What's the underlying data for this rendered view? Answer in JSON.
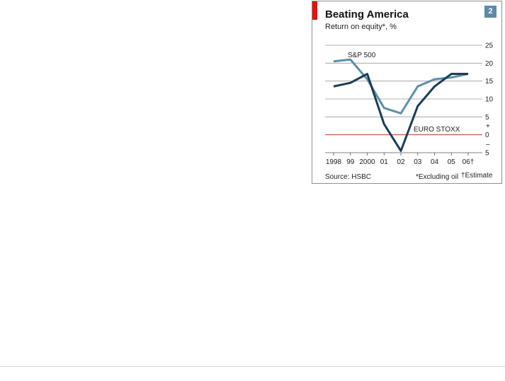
{
  "chart_data": {
    "type": "line",
    "title": "Beating America",
    "subtitle": "Return on equity*, %",
    "figure_number": "2",
    "source": "Source: HSBC",
    "footnotes": [
      "*Excluding oil",
      "†Estimate"
    ],
    "x": [
      "1998",
      "99",
      "2000",
      "01",
      "02",
      "03",
      "04",
      "05",
      "06†"
    ],
    "y_ticks": [
      {
        "value": 25,
        "label": "25"
      },
      {
        "value": 20,
        "label": "20"
      },
      {
        "value": 15,
        "label": "15"
      },
      {
        "value": 10,
        "label": "10"
      },
      {
        "value": 5,
        "label": "5"
      },
      {
        "value": 0,
        "label": "0"
      },
      {
        "value": -5,
        "label": "5"
      }
    ],
    "sign_labels": [
      {
        "value": 2.5,
        "label": "+"
      },
      {
        "value": -2.5,
        "label": "–"
      }
    ],
    "ylim": [
      -5,
      25
    ],
    "grid": true,
    "series": [
      {
        "name": "S&P 500",
        "color": "#5d8fa8",
        "values": [
          20.5,
          21,
          15.5,
          7.5,
          6,
          13.5,
          15.5,
          16,
          17
        ]
      },
      {
        "name": "EURO STOXX",
        "color": "#1a3d55",
        "values": [
          13.5,
          14.5,
          17,
          3,
          -4.5,
          8,
          13.5,
          17,
          17
        ]
      }
    ],
    "zero_line_color": "#c0392b"
  }
}
